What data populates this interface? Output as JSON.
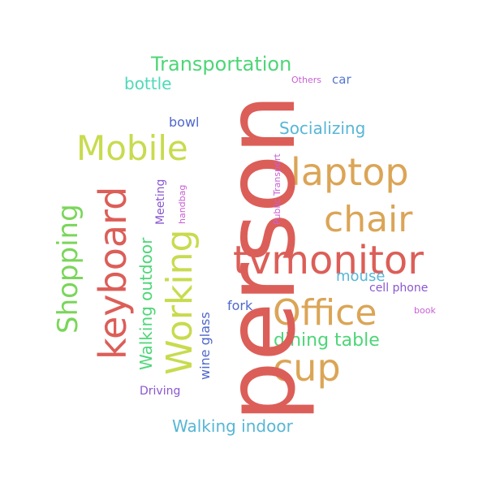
{
  "words": [
    {
      "text": "person",
      "color": "#dc5e58"
    },
    {
      "text": "Transportation",
      "color": "#4dd677"
    },
    {
      "text": "bottle",
      "color": "#4fd8b8"
    },
    {
      "text": "Others",
      "color": "#c95fd4"
    },
    {
      "text": "car",
      "color": "#5575cf"
    },
    {
      "text": "Mobile",
      "color": "#c8db4e"
    },
    {
      "text": "bowl",
      "color": "#5068cc"
    },
    {
      "text": "Socializing",
      "color": "#57b6d6"
    },
    {
      "text": "laptop",
      "color": "#dba556"
    },
    {
      "text": "chair",
      "color": "#dba556"
    },
    {
      "text": "tvmonitor",
      "color": "#dc5e58"
    },
    {
      "text": "keyboard",
      "color": "#dc5e58"
    },
    {
      "text": "Shopping",
      "color": "#7ad65a"
    },
    {
      "text": "Working",
      "color": "#c8db4e"
    },
    {
      "text": "Walking outdoor",
      "color": "#4dd677"
    },
    {
      "text": "Meeting",
      "color": "#8a57cf"
    },
    {
      "text": "handbag",
      "color": "#c95fd4"
    },
    {
      "text": "Public Transport",
      "color": "#c95fd4"
    },
    {
      "text": "mouse",
      "color": "#57b6d6"
    },
    {
      "text": "cell phone",
      "color": "#8a57cf"
    },
    {
      "text": "Office",
      "color": "#dba556"
    },
    {
      "text": "book",
      "color": "#c95fd4"
    },
    {
      "text": "fork",
      "color": "#5068cc"
    },
    {
      "text": "wine glass",
      "color": "#5068cc"
    },
    {
      "text": "dining table",
      "color": "#4dd677"
    },
    {
      "text": "cup",
      "color": "#dba556"
    },
    {
      "text": "Driving",
      "color": "#8a57cf"
    },
    {
      "text": "Walking indoor",
      "color": "#57b6d6"
    }
  ]
}
